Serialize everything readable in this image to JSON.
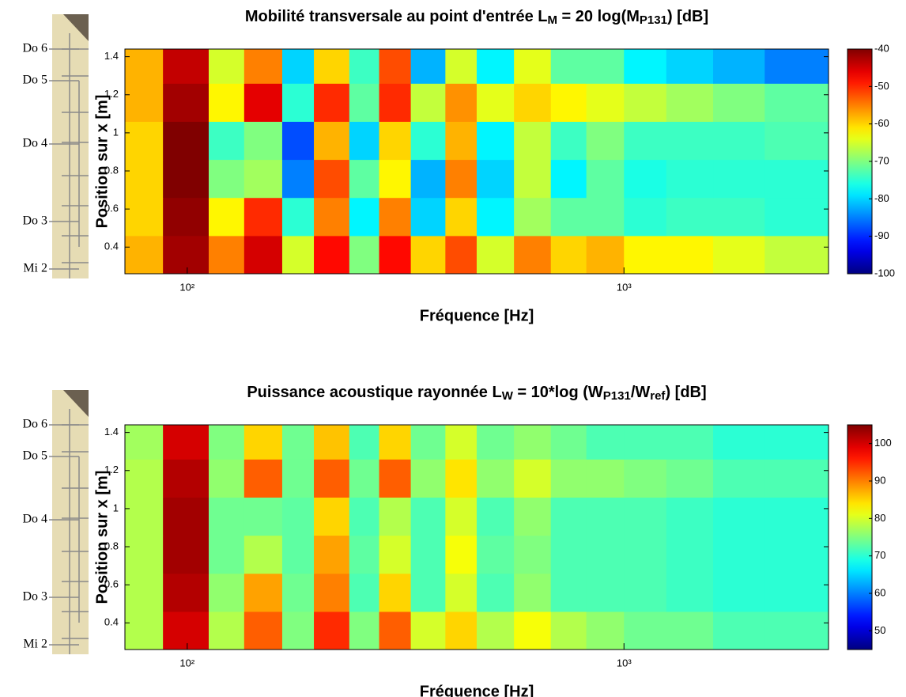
{
  "chart_data": [
    {
      "type": "heatmap",
      "title": [
        "Mobilité transversale au point d'entrée L",
        "M",
        " = 20 log(M",
        "P131",
        ") [dB]"
      ],
      "xlabel": "Fréquence [Hz]",
      "ylabel": "Position sur x [m]",
      "annotations": [
        "Do 6",
        "Do 5",
        "Do 4",
        "Do 3",
        "Mi 2"
      ],
      "xscale": "log",
      "xlim": [
        72,
        2940
      ],
      "xticks": [
        {
          "value": 100,
          "label": "10²"
        },
        {
          "value": 1000,
          "label": "10³"
        }
      ],
      "ylim": [
        0.26,
        1.44
      ],
      "yticks": [
        0.4,
        0.6,
        0.8,
        1,
        1.2,
        1.4
      ],
      "colormap": "jet",
      "clim": [
        -100,
        -40
      ],
      "cticks": [
        -40,
        -50,
        -60,
        -70,
        -80,
        -90,
        -100
      ],
      "xbins": [
        72,
        88,
        112,
        135,
        165,
        195,
        235,
        275,
        325,
        390,
        460,
        560,
        680,
        820,
        1000,
        1250,
        1600,
        2100,
        2940
      ],
      "ybins": [
        0.26,
        0.46,
        0.66,
        0.86,
        1.06,
        1.26,
        1.44
      ],
      "z": [
        [
          -58,
          -42,
          -55,
          -45,
          -65,
          -48,
          -70,
          -48,
          -60,
          -52,
          -65,
          -55,
          -60,
          -58,
          -62,
          -62,
          -64,
          -66
        ],
        [
          -60,
          -41,
          -62,
          -50,
          -75,
          -55,
          -78,
          -55,
          -80,
          -60,
          -78,
          -68,
          -72,
          -72,
          -75,
          -74,
          -74,
          -75
        ],
        [
          -60,
          -40,
          -70,
          -68,
          -85,
          -52,
          -72,
          -62,
          -82,
          -55,
          -80,
          -66,
          -78,
          -72,
          -76,
          -75,
          -75,
          -75
        ],
        [
          -60,
          -40,
          -74,
          -70,
          -88,
          -58,
          -80,
          -60,
          -75,
          -58,
          -78,
          -66,
          -74,
          -70,
          -74,
          -74,
          -74,
          -73
        ],
        [
          -58,
          -42,
          -62,
          -46,
          -75,
          -50,
          -72,
          -50,
          -66,
          -56,
          -64,
          -60,
          -62,
          -64,
          -66,
          -68,
          -70,
          -72
        ],
        [
          -58,
          -44,
          -65,
          -55,
          -80,
          -60,
          -74,
          -52,
          -82,
          -65,
          -78,
          -64,
          -72,
          -72,
          -78,
          -80,
          -82,
          -85
        ]
      ]
    },
    {
      "type": "heatmap",
      "title": [
        "Puissance acoustique rayonnée L",
        "W",
        " = 10*log (W",
        "P131",
        "/W",
        "ref",
        ") [dB]"
      ],
      "xlabel": "Fréquence [Hz]",
      "ylabel": "Position sur x [m]",
      "annotations": [
        "Do 6",
        "Do 5",
        "Do 4",
        "Do 3",
        "Mi 2"
      ],
      "xscale": "log",
      "xlim": [
        72,
        2940
      ],
      "xticks": [
        {
          "value": 100,
          "label": "10²"
        },
        {
          "value": 1000,
          "label": "10³"
        }
      ],
      "ylim": [
        0.26,
        1.44
      ],
      "yticks": [
        0.4,
        0.6,
        0.8,
        1,
        1.2,
        1.4
      ],
      "colormap": "jet",
      "clim": [
        45,
        105
      ],
      "cticks": [
        100,
        90,
        80,
        70,
        60,
        50
      ],
      "xbins": [
        72,
        88,
        112,
        135,
        165,
        195,
        235,
        275,
        325,
        390,
        460,
        560,
        680,
        820,
        1000,
        1250,
        1600,
        2100,
        2940
      ],
      "ybins": [
        0.26,
        0.46,
        0.66,
        0.86,
        1.06,
        1.26,
        1.44
      ],
      "z": [
        [
          78,
          100,
          78,
          92,
          75,
          95,
          75,
          92,
          80,
          85,
          78,
          82,
          78,
          76,
          74,
          74,
          72,
          72
        ],
        [
          78,
          102,
          76,
          88,
          74,
          90,
          72,
          85,
          72,
          80,
          72,
          76,
          72,
          72,
          72,
          71,
          70,
          70
        ],
        [
          78,
          103,
          74,
          78,
          73,
          88,
          73,
          80,
          72,
          82,
          73,
          75,
          72,
          72,
          72,
          71,
          70,
          70
        ],
        [
          78,
          103,
          74,
          74,
          73,
          85,
          72,
          78,
          72,
          80,
          72,
          76,
          72,
          72,
          72,
          71,
          70,
          70
        ],
        [
          78,
          102,
          76,
          92,
          74,
          92,
          74,
          92,
          76,
          84,
          76,
          80,
          76,
          76,
          75,
          74,
          72,
          72
        ],
        [
          77,
          100,
          75,
          85,
          74,
          86,
          72,
          85,
          74,
          80,
          74,
          76,
          74,
          72,
          72,
          72,
          70,
          70
        ]
      ]
    }
  ]
}
